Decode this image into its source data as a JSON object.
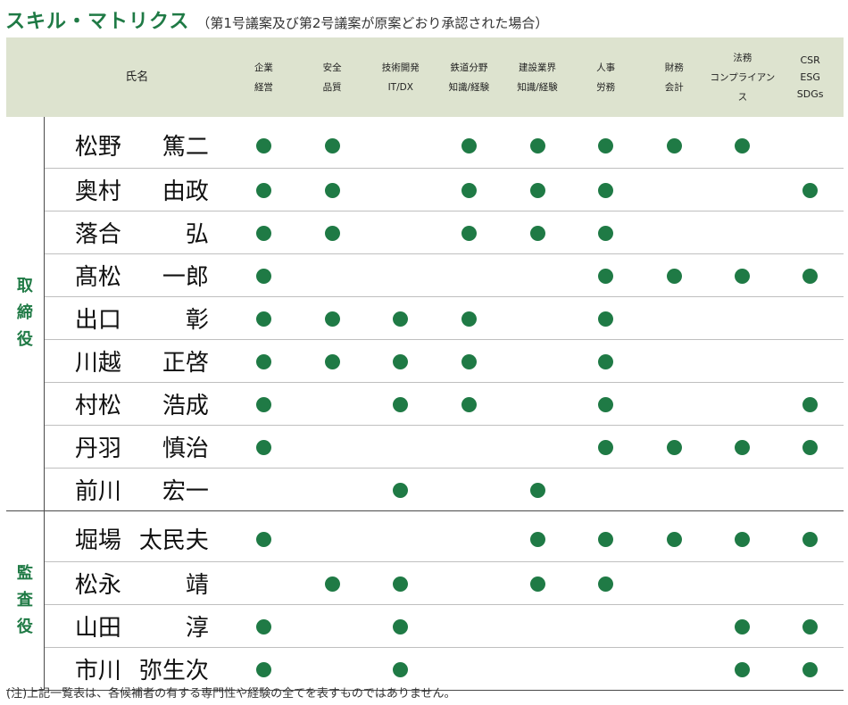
{
  "title": {
    "main": "スキル・マトリクス",
    "sub": "（第1号議案及び第2号議案が原案どおり承認された場合）"
  },
  "header": {
    "name": "氏名",
    "skills": [
      [
        "企業",
        "経営"
      ],
      [
        "安全",
        "品質"
      ],
      [
        "技術開発",
        "IT/DX"
      ],
      [
        "鉄道分野",
        "知識/経験"
      ],
      [
        "建設業界",
        "知識/経験"
      ],
      [
        "人事",
        "労務"
      ],
      [
        "財務",
        "会計"
      ],
      [
        "法務",
        "コンプライアンス"
      ],
      [
        "CSR",
        "ESG",
        "SDGs"
      ]
    ]
  },
  "groups": [
    {
      "role": "取締役",
      "members": [
        {
          "surname": "松野",
          "given": "篤二",
          "skills": [
            1,
            1,
            0,
            1,
            1,
            1,
            1,
            1,
            0
          ]
        },
        {
          "surname": "奥村",
          "given": "由政",
          "skills": [
            1,
            1,
            0,
            1,
            1,
            1,
            0,
            0,
            1
          ]
        },
        {
          "surname": "落合",
          "given": "弘",
          "skills": [
            1,
            1,
            0,
            1,
            1,
            1,
            0,
            0,
            0
          ]
        },
        {
          "surname": "髙松",
          "given": "一郎",
          "skills": [
            1,
            0,
            0,
            0,
            0,
            1,
            1,
            1,
            1
          ]
        },
        {
          "surname": "出口",
          "given": "彰",
          "skills": [
            1,
            1,
            1,
            1,
            0,
            1,
            0,
            0,
            0
          ]
        },
        {
          "surname": "川越",
          "given": "正啓",
          "skills": [
            1,
            1,
            1,
            1,
            0,
            1,
            0,
            0,
            0
          ]
        },
        {
          "surname": "村松",
          "given": "浩成",
          "skills": [
            1,
            0,
            1,
            1,
            0,
            1,
            0,
            0,
            1
          ]
        },
        {
          "surname": "丹羽",
          "given": "慎治",
          "skills": [
            1,
            0,
            0,
            0,
            0,
            1,
            1,
            1,
            1
          ]
        },
        {
          "surname": "前川",
          "given": "宏一",
          "skills": [
            0,
            0,
            1,
            0,
            1,
            0,
            0,
            0,
            0
          ]
        }
      ]
    },
    {
      "role": "監査役",
      "members": [
        {
          "surname": "堀場",
          "given": "太民夫",
          "skills": [
            1,
            0,
            0,
            0,
            1,
            1,
            1,
            1,
            1
          ]
        },
        {
          "surname": "松永",
          "given": "靖",
          "skills": [
            0,
            1,
            1,
            0,
            1,
            1,
            0,
            0,
            0
          ]
        },
        {
          "surname": "山田",
          "given": "淳",
          "skills": [
            1,
            0,
            1,
            0,
            0,
            0,
            0,
            1,
            1
          ]
        },
        {
          "surname": "市川",
          "given": "弥生次",
          "skills": [
            1,
            0,
            1,
            0,
            0,
            0,
            0,
            1,
            1
          ]
        }
      ]
    }
  ],
  "note": "(注)上記一覧表は、各候補者の有する専門性や経験の全てを表すものではありません。",
  "colors": {
    "accent": "#1f7a45",
    "header_bg": "#dde3cf"
  }
}
